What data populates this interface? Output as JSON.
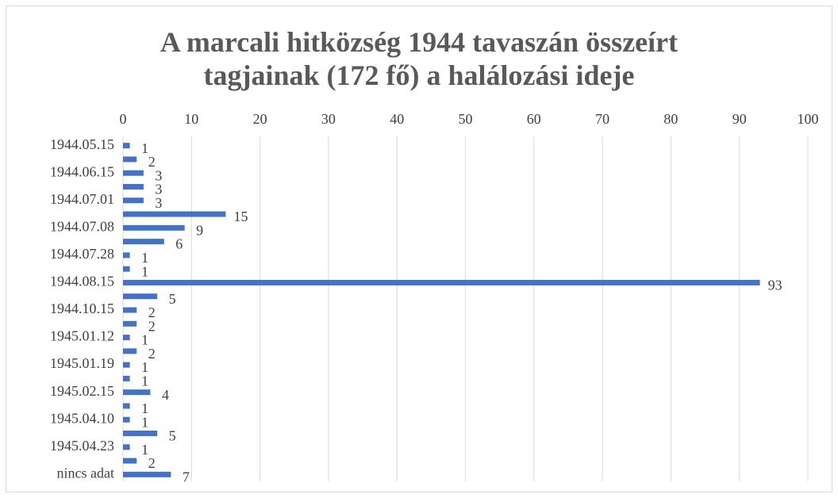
{
  "chart_data": {
    "type": "bar",
    "orientation": "horizontal",
    "title": "A marcali hitközség 1944 tavaszán összeírt tagjainak (172 fő) a halálozási ideje",
    "categories": [
      "1944.05.15",
      null,
      "1944.06.15",
      null,
      "1944.07.01",
      null,
      "1944.07.08",
      null,
      "1944.07.28",
      null,
      "1944.08.15",
      null,
      "1944.10.15",
      null,
      "1945.01.12",
      null,
      "1945.01.19",
      null,
      "1945.02.15",
      null,
      "1945.04.10",
      null,
      "1945.04.23",
      null,
      "nincs adat"
    ],
    "values": [
      1,
      2,
      3,
      3,
      3,
      15,
      9,
      6,
      1,
      1,
      93,
      5,
      2,
      2,
      1,
      2,
      1,
      1,
      4,
      1,
      1,
      5,
      1,
      2,
      7
    ],
    "color": "#4472c4",
    "xlim": [
      0,
      100
    ],
    "xticks": [
      0,
      10,
      20,
      30,
      40,
      50,
      60,
      70,
      80,
      90,
      100
    ],
    "grid": true
  }
}
